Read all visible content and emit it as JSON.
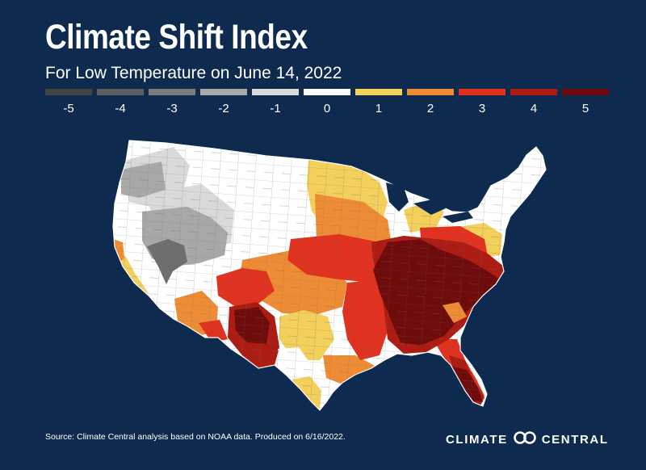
{
  "title": "Climate Shift Index",
  "subtitle": "For Low Temperature on June 14, 2022",
  "legend": {
    "labels": [
      "-5",
      "-4",
      "-3",
      "-2",
      "-1",
      "0",
      "1",
      "2",
      "3",
      "4",
      "5"
    ],
    "colors": [
      "#444444",
      "#5e5e5e",
      "#7c7c7c",
      "#a8a8a8",
      "#d9d9d9",
      "#ffffff",
      "#f3cf5c",
      "#ee8c35",
      "#e0321f",
      "#ad1c12",
      "#6e0b0b"
    ]
  },
  "map": {
    "region": "Contiguous United States",
    "index_levels_shown": [
      -3,
      -2,
      -1,
      0,
      1,
      2,
      3,
      4,
      5
    ],
    "colors": {
      "land_default": "#ffffff",
      "border": "#7a7a7a"
    }
  },
  "footer": {
    "source": "Source: Climate Central analysis based on NOAA data. Produced on 6/16/2022.",
    "brand_left": "CLIMATE",
    "brand_right": "CENTRAL",
    "logo_icon": "climate-central-logo-icon"
  }
}
